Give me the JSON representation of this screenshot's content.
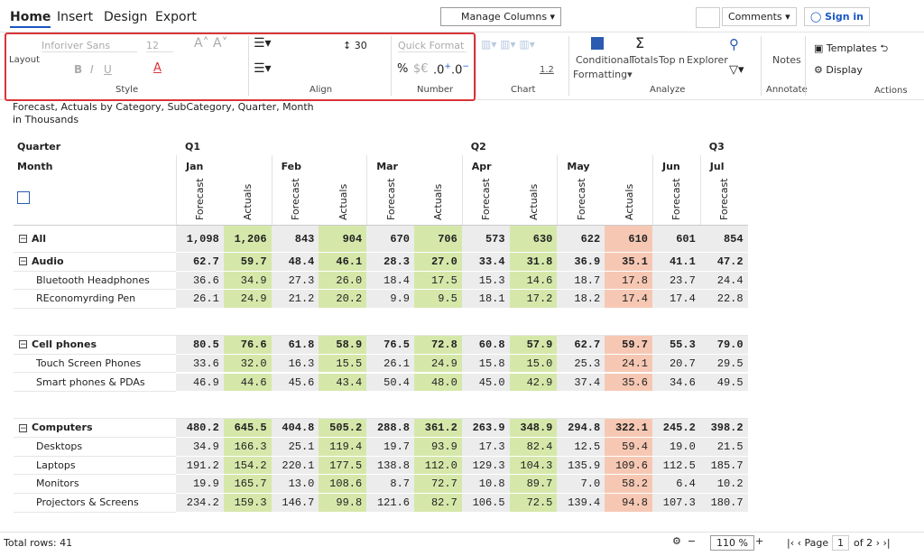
{
  "tabs": [
    "Home",
    "Insert",
    "Design",
    "Export"
  ],
  "toolbar": {
    "manage_columns": "Manage Columns",
    "comments": "Comments",
    "sign_in": "Sign in"
  },
  "ribbon": {
    "style": {
      "layout": "Layout",
      "font": "Inforiver Sans",
      "size": "12",
      "bold": "B",
      "italic": "I",
      "underline": "U",
      "label": "Style"
    },
    "align": {
      "spacing": "30",
      "label": "Align"
    },
    "number": {
      "format": "Quick Format",
      "percent": "%",
      "currency": "$€",
      "decimal_add": ".0",
      "decimal_remove": ".0",
      "label": "Number"
    },
    "chart": {
      "scale": "1.2",
      "label": "Chart"
    },
    "analyze": {
      "conditional": "Conditional",
      "formatting": "Formatting",
      "totals": "Totals",
      "top_n": "Top n",
      "explorer": "Explorer",
      "label": "Analyze"
    },
    "annotate": {
      "notes": "Notes",
      "label": "Annotate"
    },
    "actions": {
      "templates": "Templates",
      "display": "Display",
      "label": "Actions"
    }
  },
  "report": {
    "title": "Forecast, Actuals by Category, SubCategory, Quarter, Month",
    "unit": "in Thousands"
  },
  "table": {
    "header_labels": [
      "Quarter",
      "Month"
    ],
    "quarters": [
      {
        "label": "Q1",
        "months": [
          {
            "label": "Jan",
            "measures": [
              {
                "label": "Forecast",
                "fill": "#ececec"
              },
              {
                "label": "Actuals",
                "fill": "#d5e8aa"
              }
            ]
          },
          {
            "label": "Feb",
            "measures": [
              {
                "label": "Forecast",
                "fill": "#ececec"
              },
              {
                "label": "Actuals",
                "fill": "#d5e8aa"
              }
            ]
          },
          {
            "label": "Mar",
            "measures": [
              {
                "label": "Forecast",
                "fill": "#ececec"
              },
              {
                "label": "Actuals",
                "fill": "#d5e8aa"
              }
            ]
          }
        ]
      },
      {
        "label": "Q2",
        "months": [
          {
            "label": "Apr",
            "measures": [
              {
                "label": "Forecast",
                "fill": "#ececec"
              },
              {
                "label": "Actuals",
                "fill": "#d5e8aa"
              }
            ]
          },
          {
            "label": "May",
            "measures": [
              {
                "label": "Forecast",
                "fill": "#ececec"
              },
              {
                "label": "Actuals",
                "fill": "#f6c8b4"
              }
            ]
          },
          {
            "label": "Jun",
            "measures": [
              {
                "label": "Forecast",
                "fill": "#ececec"
              }
            ]
          }
        ]
      },
      {
        "label": "Q3",
        "months": [
          {
            "label": "Jul",
            "measures": [
              {
                "label": "Forecast",
                "fill": "#ececec"
              }
            ]
          }
        ]
      }
    ],
    "total": {
      "label": "All",
      "values": [
        "1,098",
        "1,206",
        "843",
        "904",
        "670",
        "706",
        "573",
        "630",
        "622",
        "610",
        "601",
        "854"
      ]
    },
    "groups": [
      {
        "label": "Audio",
        "values": [
          "62.7",
          "59.7",
          "48.4",
          "46.1",
          "28.3",
          "27.0",
          "33.4",
          "31.8",
          "36.9",
          "35.1",
          "41.1",
          "47.2"
        ],
        "children": [
          {
            "label": "Bluetooth Headphones",
            "values": [
              "36.6",
              "34.9",
              "27.3",
              "26.0",
              "18.4",
              "17.5",
              "15.3",
              "14.6",
              "18.7",
              "17.8",
              "23.7",
              "24.4"
            ]
          },
          {
            "label": "REconomyrding Pen",
            "values": [
              "26.1",
              "24.9",
              "21.2",
              "20.2",
              "9.9",
              "9.5",
              "18.1",
              "17.2",
              "18.2",
              "17.4",
              "17.4",
              "22.8"
            ]
          }
        ]
      },
      {
        "label": "Cell phones",
        "values": [
          "80.5",
          "76.6",
          "61.8",
          "58.9",
          "76.5",
          "72.8",
          "60.8",
          "57.9",
          "62.7",
          "59.7",
          "55.3",
          "79.0"
        ],
        "children": [
          {
            "label": "Touch Screen Phones",
            "values": [
              "33.6",
              "32.0",
              "16.3",
              "15.5",
              "26.1",
              "24.9",
              "15.8",
              "15.0",
              "25.3",
              "24.1",
              "20.7",
              "29.5"
            ]
          },
          {
            "label": "Smart phones & PDAs",
            "values": [
              "46.9",
              "44.6",
              "45.6",
              "43.4",
              "50.4",
              "48.0",
              "45.0",
              "42.9",
              "37.4",
              "35.6",
              "34.6",
              "49.5"
            ]
          }
        ]
      },
      {
        "label": "Computers",
        "values": [
          "480.2",
          "645.5",
          "404.8",
          "505.2",
          "288.8",
          "361.2",
          "263.9",
          "348.9",
          "294.8",
          "322.1",
          "245.2",
          "398.2"
        ],
        "children": [
          {
            "label": "Desktops",
            "values": [
              "34.9",
              "166.3",
              "25.1",
              "119.4",
              "19.7",
              "93.9",
              "17.3",
              "82.4",
              "12.5",
              "59.4",
              "19.0",
              "21.5"
            ]
          },
          {
            "label": "Laptops",
            "values": [
              "191.2",
              "154.2",
              "220.1",
              "177.5",
              "138.8",
              "112.0",
              "129.3",
              "104.3",
              "135.9",
              "109.6",
              "112.5",
              "185.7"
            ]
          },
          {
            "label": "Monitors",
            "values": [
              "19.9",
              "165.7",
              "13.0",
              "108.6",
              "8.7",
              "72.7",
              "10.8",
              "89.7",
              "7.0",
              "58.2",
              "6.4",
              "10.2"
            ]
          },
          {
            "label": "Projectors & Screens",
            "values": [
              "234.2",
              "159.3",
              "146.7",
              "99.8",
              "121.6",
              "82.7",
              "106.5",
              "72.5",
              "139.4",
              "94.8",
              "107.3",
              "180.7"
            ]
          }
        ]
      }
    ]
  },
  "footer": {
    "total_rows": "Total rows: 41",
    "zoom": "110 %",
    "page_label": "Page",
    "page": "1",
    "page_of": "of 2"
  }
}
